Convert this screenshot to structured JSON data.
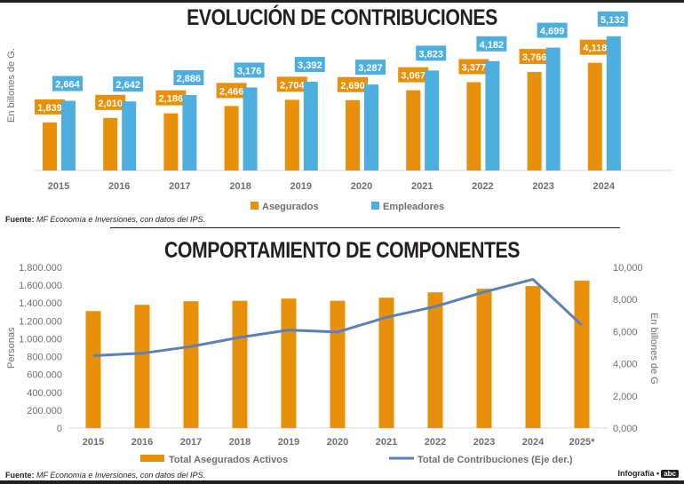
{
  "colors": {
    "orange": "#e8900a",
    "blue": "#4daee0",
    "line": "#5b80b8",
    "dark": "#231f20",
    "gray": "#6d6e70"
  },
  "footer": {
    "source_label": "Fuente:",
    "source_text": "MF Economía e Inversiones, con datos del IPS.",
    "credit_label": "Infografía •",
    "credit_logo": "abc"
  },
  "chart_data": [
    {
      "type": "bar",
      "title": "EVOLUCIÓN DE CONTRIBUCIONES",
      "ylabel": "En billones de G.",
      "xlabel": "",
      "categories": [
        "2015",
        "2016",
        "2017",
        "2018",
        "2019",
        "2020",
        "2021",
        "2022",
        "2023",
        "2024"
      ],
      "series": [
        {
          "name": "Asegurados",
          "color": "#e8900a",
          "values": [
            1839,
            2010,
            2186,
            2466,
            2704,
            2690,
            3067,
            3377,
            3766,
            4118
          ],
          "labels": [
            "1,839",
            "2,010",
            "2,186",
            "2,466",
            "2,704",
            "2,690",
            "3,067",
            "3,377",
            "3,766",
            "4,118"
          ]
        },
        {
          "name": "Empleadores",
          "color": "#4daee0",
          "values": [
            2664,
            2642,
            2886,
            3176,
            3392,
            3287,
            3823,
            4182,
            4699,
            5132
          ],
          "labels": [
            "2,664",
            "2,642",
            "2,886",
            "3,176",
            "3,392",
            "3,287",
            "3,823",
            "4,182",
            "4,699",
            "5,132"
          ]
        }
      ],
      "ylim": [
        0,
        5500
      ],
      "grid": false,
      "legend": "bottom"
    },
    {
      "type": "bar+line",
      "title": "COMPORTAMIENTO DE COMPONENTES",
      "ylabel": "Personas",
      "y2label": "En billones de G",
      "categories": [
        "2015",
        "2016",
        "2017",
        "2018",
        "2019",
        "2020",
        "2021",
        "2022",
        "2023",
        "2024",
        "2025*"
      ],
      "series": [
        {
          "name": "Total Asegurados Activos",
          "type": "bar",
          "axis": "left",
          "color": "#e8900a",
          "values": [
            1310000,
            1380000,
            1420000,
            1425000,
            1450000,
            1425000,
            1460000,
            1520000,
            1560000,
            1590000,
            1650000
          ]
        },
        {
          "name": "Total de Contribuciones (Eje der.)",
          "type": "line",
          "axis": "right",
          "color": "#5b80b8",
          "values": [
            4503,
            4652,
            5072,
            5642,
            6096,
            5977,
            6890,
            7559,
            8465,
            9250,
            6400
          ]
        }
      ],
      "ylim": [
        0,
        1800000
      ],
      "yticks": [
        "0",
        "200.000",
        "400.000",
        "600.000",
        "800.000",
        "1.000.000",
        "1.200.000",
        "1.400.000",
        "1.600.000",
        "1.800.000"
      ],
      "y2lim": [
        0,
        10000
      ],
      "y2ticks": [
        "0,000",
        "2,000",
        "4,000",
        "6,000",
        "8,000",
        "10,000"
      ],
      "grid": false,
      "legend": "bottom"
    }
  ]
}
